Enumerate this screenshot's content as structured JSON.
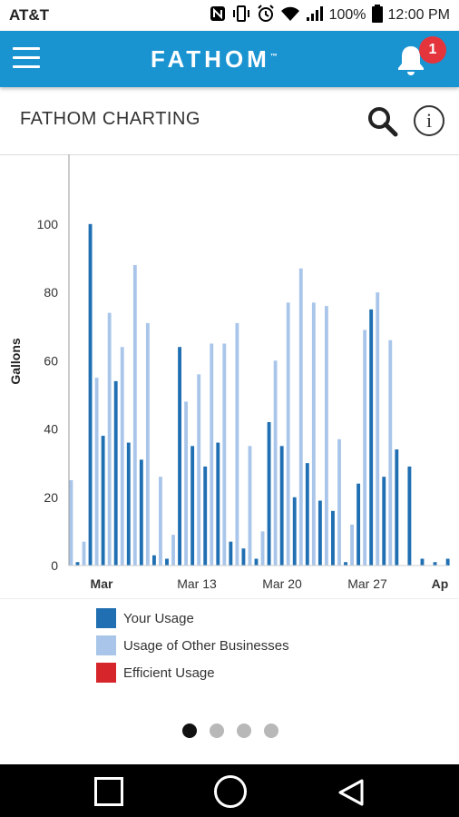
{
  "status_bar": {
    "carrier": "AT&T",
    "battery": "100%",
    "time": "12:00 PM"
  },
  "app_bar": {
    "logo_text": "FATHOM",
    "logo_tm": "™",
    "notification_count": "1"
  },
  "sub_header": {
    "title": "FATHOM CHARTING"
  },
  "icons": {
    "menu": "menu-icon",
    "bell": "bell-icon",
    "search": "search-icon",
    "info": "info-icon"
  },
  "info_glyph": "i",
  "chart_data": {
    "type": "bar",
    "title": "",
    "ylabel": "Gallons",
    "ylim": [
      0,
      105
    ],
    "yticks": [
      "0",
      "20",
      "40",
      "60",
      "80",
      "100"
    ],
    "xtick_labels": [
      "Mar",
      "Mar 13",
      "Mar 20",
      "Mar 27",
      "Ap"
    ],
    "series": [
      {
        "name": "Your Usage",
        "color": "#1f6fb2",
        "values": [
          1,
          100,
          38,
          54,
          36,
          31,
          3,
          2,
          64,
          35,
          29,
          36,
          7,
          5,
          2,
          42,
          35,
          20,
          30,
          19,
          16,
          1,
          24,
          75,
          26,
          34,
          29,
          2,
          1,
          2
        ]
      },
      {
        "name": "Usage of Other Businesses",
        "color": "#a9c6ea",
        "values": [
          25,
          7,
          55,
          74,
          64,
          88,
          71,
          26,
          9,
          48,
          56,
          65,
          65,
          71,
          35,
          10,
          60,
          77,
          87,
          77,
          76,
          37,
          12,
          69,
          80,
          66,
          0,
          0,
          0,
          0
        ]
      },
      {
        "name": "Efficient Usage",
        "color": "#d7262b",
        "values": []
      }
    ]
  },
  "page_indicator": {
    "count": 4,
    "active_index": 0
  }
}
